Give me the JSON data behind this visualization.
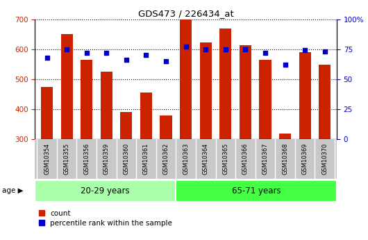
{
  "title": "GDS473 / 226434_at",
  "categories": [
    "GSM10354",
    "GSM10355",
    "GSM10356",
    "GSM10359",
    "GSM10360",
    "GSM10361",
    "GSM10362",
    "GSM10363",
    "GSM10364",
    "GSM10365",
    "GSM10366",
    "GSM10367",
    "GSM10368",
    "GSM10369",
    "GSM10370"
  ],
  "counts": [
    475,
    650,
    565,
    525,
    390,
    455,
    380,
    700,
    623,
    668,
    613,
    565,
    318,
    590,
    548
  ],
  "percentiles": [
    68,
    75,
    72,
    72,
    66,
    70,
    65,
    77,
    75,
    75,
    75,
    72,
    62,
    74,
    73
  ],
  "group1_label": "20-29 years",
  "group2_label": "65-71 years",
  "group1_count": 7,
  "group2_count": 8,
  "ylim_left": [
    300,
    700
  ],
  "ylim_right": [
    0,
    100
  ],
  "yticks_left": [
    300,
    400,
    500,
    600,
    700
  ],
  "yticks_right": [
    0,
    25,
    50,
    75,
    100
  ],
  "bar_color": "#CC2200",
  "scatter_color": "#0000CC",
  "group1_color": "#AAFFAA",
  "group2_color": "#44FF44",
  "tick_area_color": "#C8C8C8",
  "legend_count_label": "count",
  "legend_pct_label": "percentile rank within the sample",
  "age_label": "age"
}
